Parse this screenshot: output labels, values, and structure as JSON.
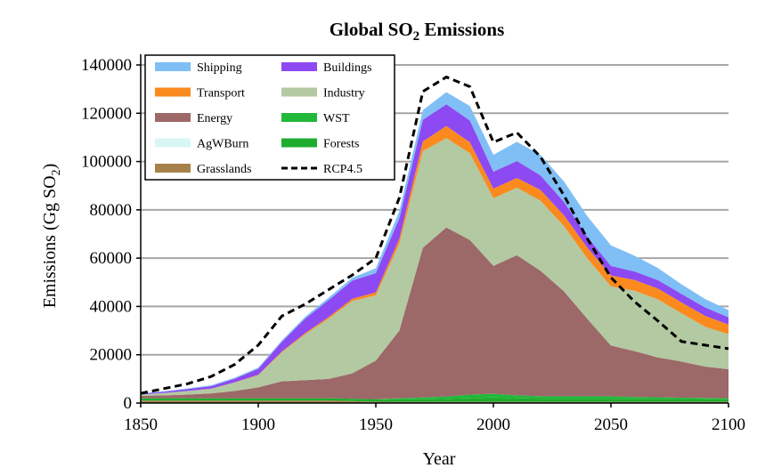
{
  "chart_data": {
    "type": "area",
    "title": "Global SO",
    "title_sub": "2",
    "title_end": " Emissions",
    "xlabel": "Year",
    "ylabel": "Emissions (Gg SO",
    "ylabel_sub": "2",
    "ylabel_end": ")",
    "xlim": [
      1850,
      2100
    ],
    "ylim": [
      0,
      140000
    ],
    "xticks": [
      1850,
      1900,
      1950,
      2000,
      2050,
      2100
    ],
    "yticks": [
      0,
      20000,
      40000,
      60000,
      80000,
      100000,
      120000,
      140000
    ],
    "grid": "horizontal",
    "legend_position": "top-left",
    "x": [
      1850,
      1860,
      1870,
      1880,
      1890,
      1900,
      1910,
      1920,
      1930,
      1940,
      1950,
      1960,
      1970,
      1980,
      1990,
      2000,
      2010,
      2020,
      2030,
      2040,
      2050,
      2060,
      2070,
      2080,
      2090,
      2100
    ],
    "stack_order": [
      "Grasslands",
      "Forests",
      "AgWBurn",
      "WST",
      "Energy",
      "Industry",
      "Transport",
      "Buildings",
      "Shipping"
    ],
    "series": [
      {
        "name": "Shipping",
        "color": "#7fbff5",
        "values": [
          200,
          250,
          300,
          350,
          400,
          500,
          600,
          800,
          1000,
          1200,
          2000,
          3000,
          4000,
          5000,
          6000,
          7000,
          8000,
          8500,
          8500,
          8500,
          8500,
          6500,
          5000,
          4000,
          3500,
          3000
        ]
      },
      {
        "name": "Buildings",
        "color": "#8d49f2",
        "values": [
          300,
          500,
          800,
          1000,
          1500,
          2500,
          4000,
          6000,
          7000,
          7500,
          8000,
          8500,
          9000,
          9000,
          9000,
          7000,
          7000,
          6000,
          5500,
          4500,
          4000,
          3500,
          3500,
          3500,
          3500,
          3000
        ]
      },
      {
        "name": "Transport",
        "color": "#fa8a1e",
        "values": [
          0,
          0,
          0,
          0,
          100,
          200,
          300,
          500,
          700,
          900,
          1200,
          2000,
          4000,
          5000,
          4500,
          4000,
          4000,
          4500,
          4500,
          4500,
          4500,
          4500,
          4500,
          4500,
          4500,
          4000
        ]
      },
      {
        "name": "Industry",
        "color": "#b3c9a2",
        "values": [
          500,
          1000,
          1500,
          2000,
          3500,
          5000,
          12000,
          19000,
          25000,
          30000,
          27000,
          36000,
          40000,
          37000,
          36000,
          28000,
          28000,
          29000,
          27000,
          25000,
          24500,
          25000,
          24000,
          20000,
          16500,
          14500
        ]
      },
      {
        "name": "Energy",
        "color": "#9c6868",
        "values": [
          1000,
          1200,
          1500,
          2000,
          3000,
          4500,
          7000,
          7500,
          8000,
          10500,
          16000,
          28000,
          62000,
          70000,
          64000,
          53000,
          58000,
          52000,
          43500,
          32000,
          21000,
          19000,
          16500,
          15000,
          13000,
          12000
        ]
      },
      {
        "name": "WST",
        "color": "#22b83a",
        "values": [
          0,
          0,
          0,
          0,
          0,
          0,
          0,
          0,
          0,
          0,
          0,
          500,
          800,
          1000,
          1500,
          1500,
          1200,
          1000,
          1000,
          1000,
          1000,
          800,
          700,
          500,
          500,
          500
        ]
      },
      {
        "name": "AgWBurn",
        "color": "#d8f6f6",
        "values": [
          0,
          0,
          0,
          0,
          0,
          0,
          0,
          0,
          0,
          0,
          0,
          0,
          0,
          0,
          0,
          0,
          0,
          0,
          0,
          0,
          0,
          0,
          0,
          0,
          0,
          0
        ]
      },
      {
        "name": "Forests",
        "color": "#1fad2f",
        "values": [
          1000,
          1000,
          1000,
          1000,
          1000,
          1000,
          1000,
          1000,
          1000,
          1000,
          1000,
          1000,
          1000,
          1200,
          1500,
          1800,
          1500,
          1300,
          1300,
          1300,
          1300,
          1200,
          1200,
          1200,
          1100,
          1000
        ]
      },
      {
        "name": "Grasslands",
        "color": "#a6824a",
        "values": [
          1000,
          1000,
          1000,
          1000,
          1000,
          1000,
          1000,
          1000,
          1000,
          800,
          600,
          500,
          500,
          500,
          500,
          500,
          500,
          500,
          500,
          500,
          500,
          500,
          500,
          500,
          500,
          500
        ]
      },
      {
        "name": "RCP4.5",
        "color": "#000000",
        "style": "dashed",
        "x": [
          1850,
          1860,
          1870,
          1880,
          1890,
          1900,
          1910,
          1920,
          1930,
          1940,
          1950,
          1960,
          1970,
          1980,
          1990,
          2000,
          2010,
          2020,
          2030,
          2040,
          2050,
          2060,
          2070,
          2080,
          2090,
          2100
        ],
        "values": [
          4000,
          6000,
          8000,
          11000,
          16000,
          24000,
          36000,
          41000,
          47000,
          53000,
          60000,
          85000,
          129000,
          135000,
          131000,
          108000,
          112000,
          102000,
          86000,
          68000,
          52000,
          42000,
          34000,
          25500,
          24000,
          22500
        ]
      }
    ],
    "legend": [
      {
        "name": "Shipping",
        "color": "#7fbff5",
        "col": 0,
        "row": 0
      },
      {
        "name": "Buildings",
        "color": "#8d49f2",
        "col": 1,
        "row": 0
      },
      {
        "name": "Transport",
        "color": "#fa8a1e",
        "col": 0,
        "row": 1
      },
      {
        "name": "Industry",
        "color": "#b3c9a2",
        "col": 1,
        "row": 1
      },
      {
        "name": "Energy",
        "color": "#9c6868",
        "col": 0,
        "row": 2
      },
      {
        "name": "WST",
        "color": "#22b83a",
        "col": 1,
        "row": 2
      },
      {
        "name": "AgWBurn",
        "color": "#d8f6f6",
        "col": 0,
        "row": 3
      },
      {
        "name": "Forests",
        "color": "#1fad2f",
        "col": 1,
        "row": 3
      },
      {
        "name": "Grasslands",
        "color": "#a6824a",
        "col": 0,
        "row": 4
      },
      {
        "name": "RCP4.5",
        "color": "#000000",
        "col": 1,
        "row": 4,
        "style": "dashed"
      }
    ]
  }
}
